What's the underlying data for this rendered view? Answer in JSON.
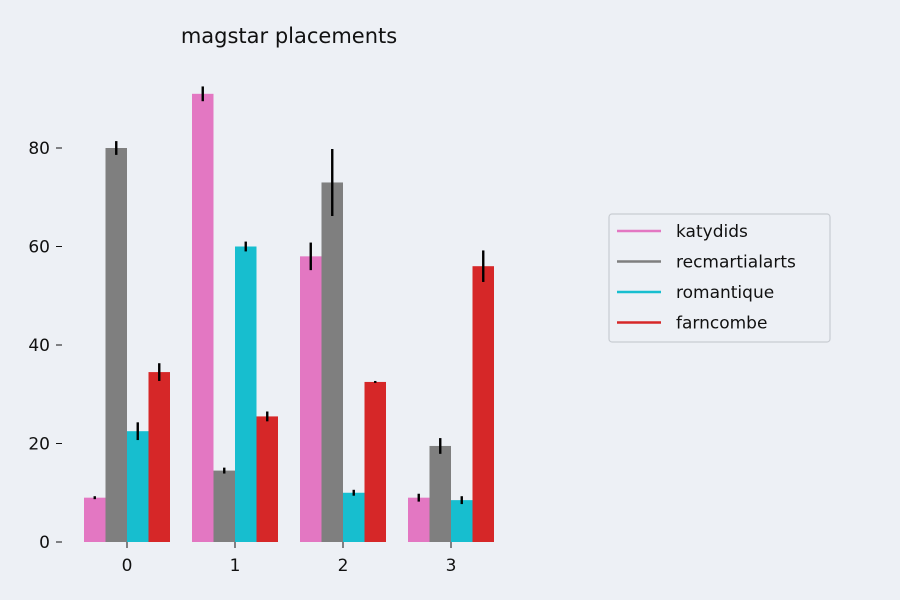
{
  "chart_data": {
    "type": "bar",
    "title": "magstar placements",
    "xlabel": "",
    "ylabel": "",
    "categories": [
      "0",
      "1",
      "2",
      "3"
    ],
    "ylim": [
      0,
      95
    ],
    "yticks": [
      0,
      20,
      40,
      60,
      80
    ],
    "grid": false,
    "legend_position": "right",
    "series": [
      {
        "name": "katydids",
        "color": "#e377c2",
        "values": [
          9,
          91,
          58,
          9
        ],
        "errors": [
          0.3,
          1.5,
          2.8,
          0.8
        ]
      },
      {
        "name": "recmartialarts",
        "color": "#7f7f7f",
        "values": [
          80,
          14.5,
          73,
          19.5
        ],
        "errors": [
          1.4,
          0.6,
          6.8,
          1.6
        ]
      },
      {
        "name": "romantique",
        "color": "#17becf",
        "values": [
          22.5,
          60,
          10,
          8.5
        ],
        "errors": [
          1.8,
          1.0,
          0.6,
          0.8
        ]
      },
      {
        "name": "farncombe",
        "color": "#d62728",
        "values": [
          34.5,
          25.5,
          32.5,
          56
        ],
        "errors": [
          1.8,
          1.0,
          0.2,
          3.2
        ]
      }
    ]
  }
}
